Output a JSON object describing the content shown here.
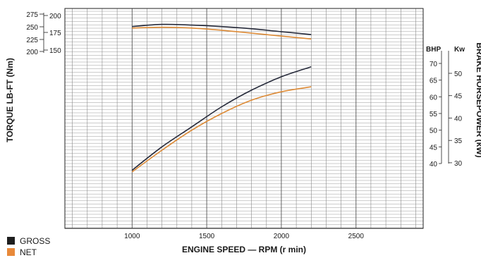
{
  "chart_data": {
    "type": "line",
    "title": "",
    "xlabel": "ENGINE SPEED — RPM (r min)",
    "xlim": [
      550,
      2950
    ],
    "xticks": [
      "1000",
      "1500",
      "2000",
      "2500"
    ],
    "xtick_values": [
      1000,
      1500,
      2000,
      2500
    ],
    "torque_axis": {
      "label": "TORQUE LB-FT (Nm)",
      "lbft_ticks": [
        "200",
        "175",
        "150"
      ],
      "lbft_tick_values": [
        200,
        175,
        150
      ],
      "nm_ticks": [
        "275",
        "250",
        "225",
        "200"
      ],
      "nm_tick_values": [
        275,
        250,
        225,
        200
      ],
      "lbft_range_shown": [
        150,
        205
      ]
    },
    "power_axis": {
      "label": "BRAKE HORSEPOWER (kW)",
      "bhp_header": "BHP",
      "kw_header": "Kw",
      "bhp_ticks": [
        "70",
        "65",
        "60",
        "55",
        "50",
        "45",
        "40"
      ],
      "bhp_tick_values": [
        70,
        65,
        60,
        55,
        50,
        45,
        40
      ],
      "kw_ticks": [
        "50",
        "45",
        "40",
        "35",
        "30"
      ],
      "kw_tick_values": [
        50,
        45,
        40,
        35,
        30
      ],
      "bhp_range": [
        35,
        70
      ]
    },
    "series": [
      {
        "name": "GROSS",
        "quantity": "torque",
        "color": "#262a3a",
        "x": [
          1000,
          1200,
          1400,
          1600,
          1800,
          2000,
          2200
        ],
        "y": [
          186,
          189,
          188,
          186,
          183,
          179,
          175
        ]
      },
      {
        "name": "NET",
        "quantity": "torque",
        "color": "#dd8a35",
        "x": [
          1000,
          1200,
          1400,
          1600,
          1800,
          2000,
          2200
        ],
        "y": [
          184,
          185,
          184,
          181,
          177,
          173,
          169
        ]
      },
      {
        "name": "GROSS",
        "quantity": "power",
        "color": "#262a3a",
        "x": [
          1000,
          1200,
          1400,
          1600,
          1800,
          2000,
          2200
        ],
        "y": [
          38,
          45,
          51,
          57,
          62,
          66,
          69
        ]
      },
      {
        "name": "NET",
        "quantity": "power",
        "color": "#dd8a35",
        "x": [
          1000,
          1200,
          1400,
          1600,
          1800,
          2000,
          2200
        ],
        "y": [
          37.5,
          44,
          50,
          55,
          59,
          61.5,
          63
        ]
      }
    ],
    "legend": {
      "placement": "bottom-left",
      "items": [
        {
          "label": "GROSS",
          "color": "#1e1e1e"
        },
        {
          "label": "NET",
          "color": "#e8893a"
        }
      ]
    },
    "grid": true
  }
}
